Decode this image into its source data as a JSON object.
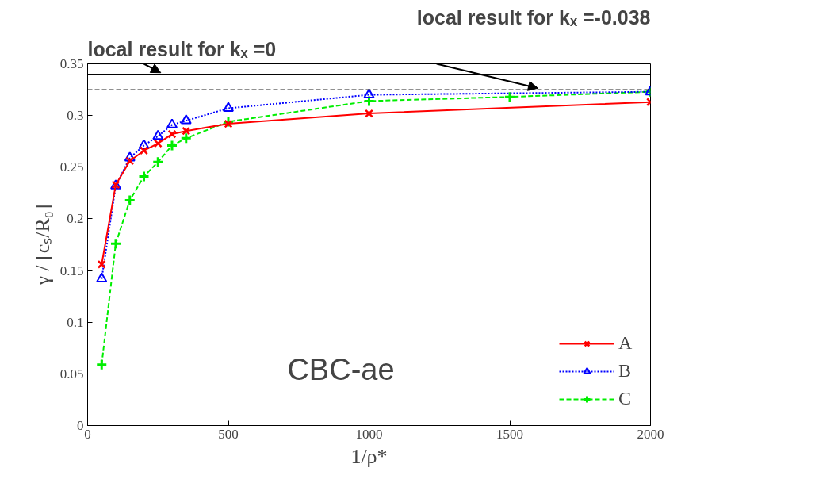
{
  "chart_data": {
    "type": "line",
    "xlabel": "1/ρ*",
    "ylabel": "γ / [cₛ/R₀]",
    "x": [
      50,
      100,
      150,
      200,
      250,
      300,
      350,
      500,
      1000,
      2000
    ],
    "xlim": [
      0,
      2000
    ],
    "xticks": [
      0,
      500,
      1000,
      1500,
      2000
    ],
    "ylim": [
      0,
      0.35
    ],
    "yticks": [
      0,
      0.05,
      0.1,
      0.15,
      0.2,
      0.25,
      0.3,
      0.35
    ],
    "grid": false,
    "legend": "bottom right",
    "series": [
      {
        "name": "A",
        "color": "#ff0000",
        "marker": "cross",
        "line_style": "solid",
        "values": [
          0.156,
          0.233,
          0.256,
          0.266,
          0.273,
          0.282,
          0.285,
          0.292,
          0.302,
          0.313
        ]
      },
      {
        "name": "B",
        "color": "#0000ff",
        "marker": "triangle",
        "line_style": "dotted",
        "values": [
          0.142,
          0.232,
          0.259,
          0.271,
          0.28,
          0.291,
          0.295,
          0.307,
          0.32,
          0.323
        ]
      },
      {
        "name": "C",
        "color": "#00ee00",
        "marker": "cross",
        "line_style": "dashed",
        "x": [
          50,
          100,
          150,
          200,
          250,
          300,
          350,
          500,
          1000,
          1500,
          2000
        ],
        "values": [
          0.059,
          0.176,
          0.218,
          0.241,
          0.255,
          0.271,
          0.278,
          0.294,
          0.314,
          0.318,
          0.323
        ]
      }
    ],
    "ref_lines": [
      {
        "axis": "y",
        "value": 0.34,
        "color": "#000000",
        "line_style": "solid"
      },
      {
        "axis": "y",
        "value": 0.325,
        "color": "#000000",
        "line_style": "dashed"
      }
    ],
    "annotations": [
      "local result for kₓ =0",
      "local result for kₓ =-0.038",
      "CBC-ae"
    ]
  }
}
